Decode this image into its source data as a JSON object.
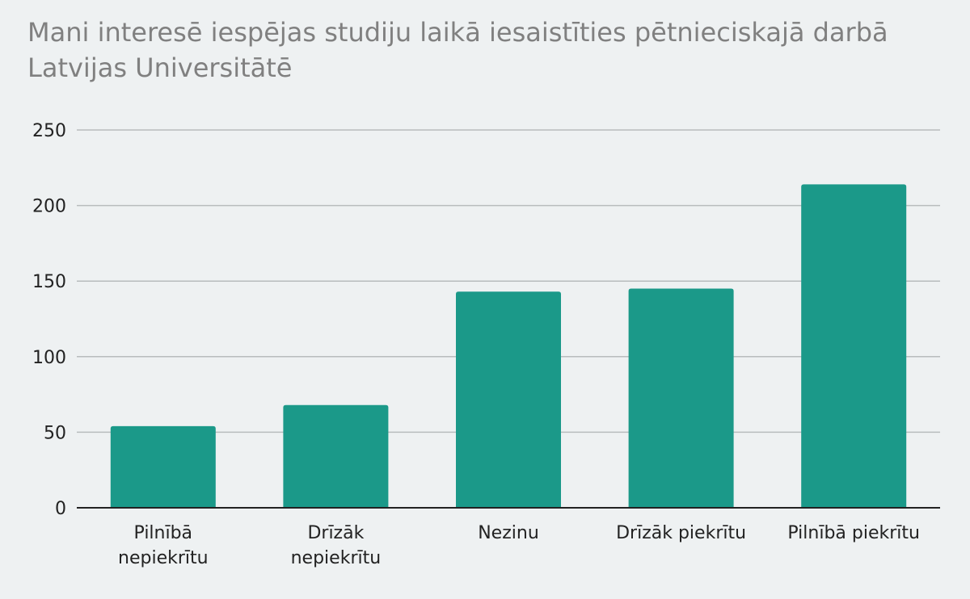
{
  "chart_data": {
    "type": "bar",
    "title_lines": [
      "Mani interesē iespējas studiju laikā iesaistīties pētnieciskajā darbā",
      "Latvijas Universitātē"
    ],
    "categories": [
      [
        "Pilnībā",
        "nepiekrītu"
      ],
      [
        "Drīzāk",
        "nepiekrītu"
      ],
      [
        "Nezinu"
      ],
      [
        "Drīzāk piekrītu"
      ],
      [
        "Pilnībā piekrītu"
      ]
    ],
    "values": [
      54,
      68,
      143,
      145,
      214
    ],
    "ylim": [
      0,
      250
    ],
    "yticks": [
      0,
      50,
      100,
      150,
      200,
      250
    ],
    "grid": true,
    "colors": {
      "bar": "#1b9989",
      "grid": "#b8bcbd",
      "axis": "#222222"
    }
  }
}
